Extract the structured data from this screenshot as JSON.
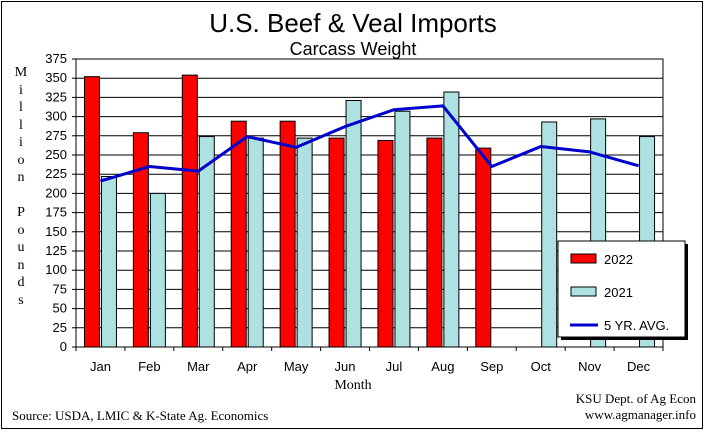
{
  "chart_data": {
    "type": "bar",
    "title": "U.S. Beef & Veal Imports",
    "subtitle": "Carcass Weight",
    "xlabel": "Month",
    "ylabel": "Million Pounds",
    "ylim": [
      0,
      375
    ],
    "yticks": [
      0,
      25,
      50,
      75,
      100,
      125,
      150,
      175,
      200,
      225,
      250,
      275,
      300,
      325,
      350,
      375
    ],
    "grid": true,
    "legend_position": "bottom-right",
    "categories": [
      "Jan",
      "Feb",
      "Mar",
      "Apr",
      "May",
      "Jun",
      "Jul",
      "Aug",
      "Sep",
      "Oct",
      "Nov",
      "Dec"
    ],
    "series": [
      {
        "name": "2022",
        "type": "bar",
        "color": "#ff0000",
        "values": [
          352,
          279,
          354,
          294,
          294,
          272,
          269,
          272,
          259,
          null,
          null,
          null
        ]
      },
      {
        "name": "2021",
        "type": "bar",
        "color": "#aee1e1",
        "values": [
          222,
          200,
          274,
          272,
          272,
          321,
          307,
          332,
          null,
          293,
          297,
          274
        ]
      },
      {
        "name": "5 YR. AVG.",
        "type": "line",
        "color": "#0000cc",
        "values": [
          216,
          235,
          229,
          274,
          260,
          287,
          309,
          314,
          235,
          261,
          254,
          236
        ]
      }
    ]
  },
  "footer": {
    "source": "Source:  USDA, LMIC & K-State Ag. Economics",
    "credit_line1": "KSU Dept. of Ag Econ",
    "credit_line2": "www.agmanager.info"
  }
}
